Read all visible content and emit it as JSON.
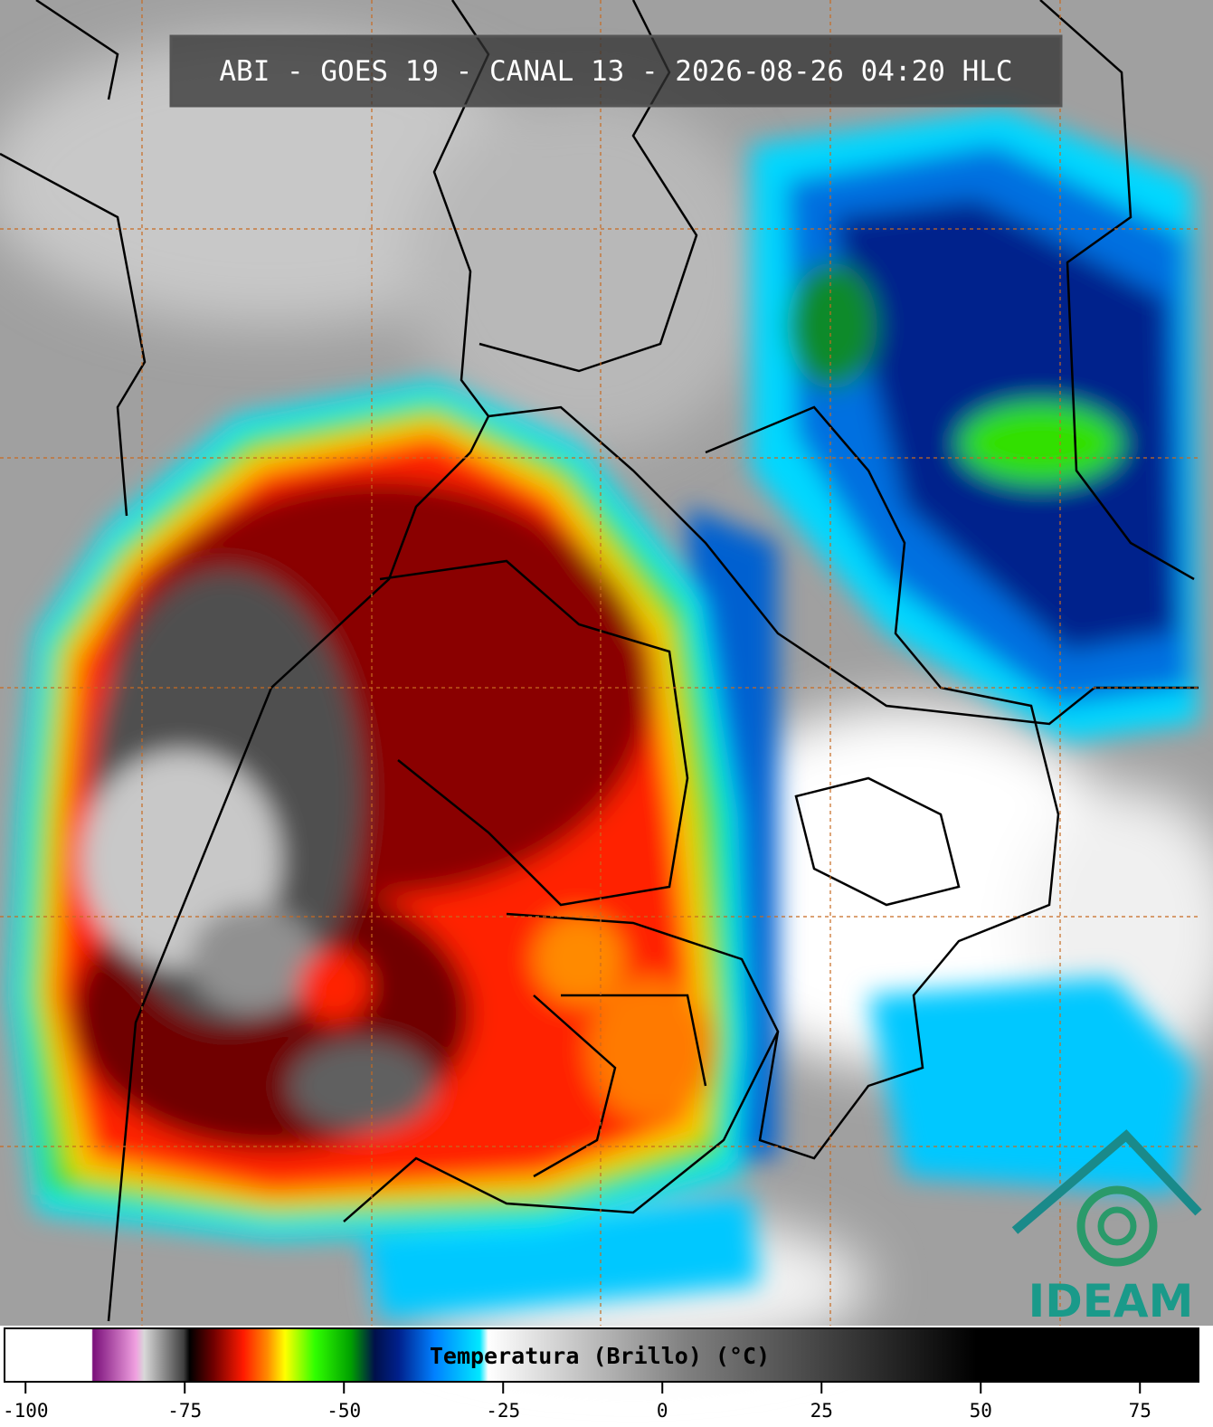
{
  "header": {
    "title": "ABI - GOES 19 - CANAL 13 - 2026-08-26 04:20 HLC"
  },
  "colorbar": {
    "label": "Temperatura (Brillo) (°C)",
    "lim": [
      -103.3,
      84.2
    ],
    "ticks": [
      -100,
      -75,
      -50,
      -25,
      0,
      25,
      50,
      75
    ]
  },
  "logo": {
    "text": "IDEAM"
  }
}
